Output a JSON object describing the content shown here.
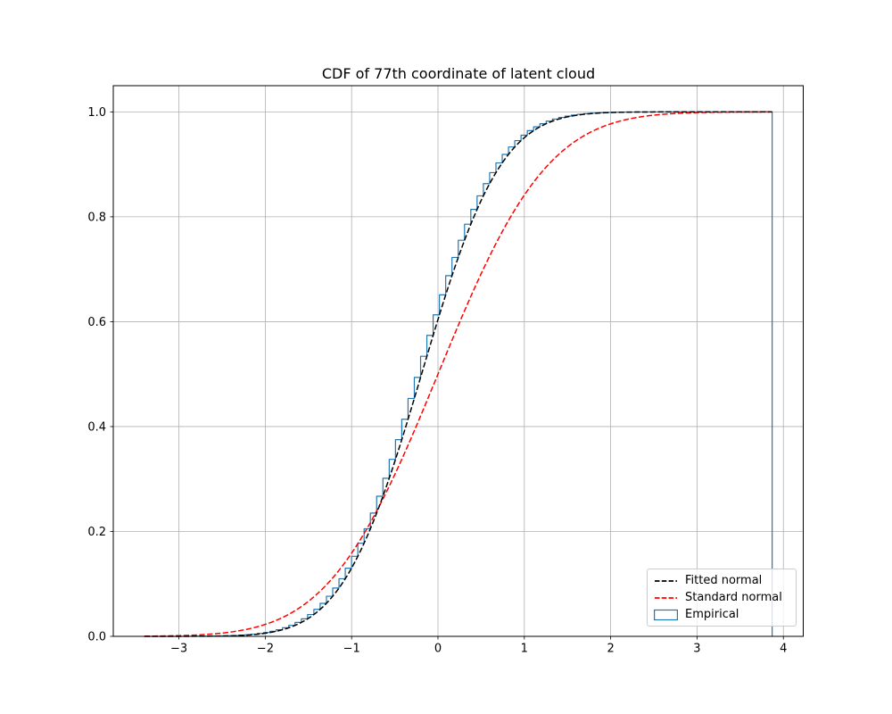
{
  "figure": {
    "background": "#ffffff"
  },
  "legend": {
    "position": "lower right",
    "items": [
      {
        "label": "Fitted normal",
        "color": "#000000",
        "style": "dashed-line"
      },
      {
        "label": "Standard normal",
        "color": "#ff0000",
        "style": "dashed-line"
      },
      {
        "label": "Empirical",
        "color": "#1f77b4",
        "style": "outlined-patch"
      }
    ]
  },
  "chart_data": {
    "type": "line",
    "title": "CDF of 77th coordinate of latent cloud",
    "xlabel": "",
    "ylabel": "",
    "xlim": [
      -3.76,
      4.23
    ],
    "ylim": [
      0,
      1.05
    ],
    "x_ticks": [
      -3,
      -2,
      -1,
      0,
      1,
      2,
      3,
      4
    ],
    "x_tick_labels": [
      "−3",
      "−2",
      "−1",
      "0",
      "1",
      "2",
      "3",
      "4"
    ],
    "y_ticks": [
      0.0,
      0.2,
      0.4,
      0.6,
      0.8,
      1.0
    ],
    "y_tick_labels": [
      "0.0",
      "0.2",
      "0.4",
      "0.6",
      "0.8",
      "1.0"
    ],
    "grid": true,
    "grid_color": "#b0b0b0",
    "spine_color": "#000000",
    "legend_position": "lower right",
    "data_range": [
      -3.4,
      3.87
    ],
    "series": [
      {
        "name": "Empirical",
        "kind": "cumulative_histogram_step",
        "bins": 100,
        "range": [
          -3.4,
          3.87
        ],
        "follows": "Fitted normal",
        "final_value": 1.0,
        "closes_to_zero_at_right_edge": true,
        "color": "#1f77b4",
        "linestyle": "solid",
        "linewidth": 1.2
      },
      {
        "name": "Standard normal",
        "kind": "normal_cdf",
        "mean": 0,
        "std": 1,
        "x_range": [
          -3.4,
          3.87
        ],
        "color": "#ff0000",
        "linestyle": "dashed",
        "linewidth": 1.5
      },
      {
        "name": "Fitted normal",
        "kind": "normal_cdf",
        "mean": -0.19,
        "std": 0.72,
        "x_range": [
          -3.4,
          3.87
        ],
        "color": "#000000",
        "linestyle": "dashed",
        "linewidth": 1.5
      }
    ]
  }
}
